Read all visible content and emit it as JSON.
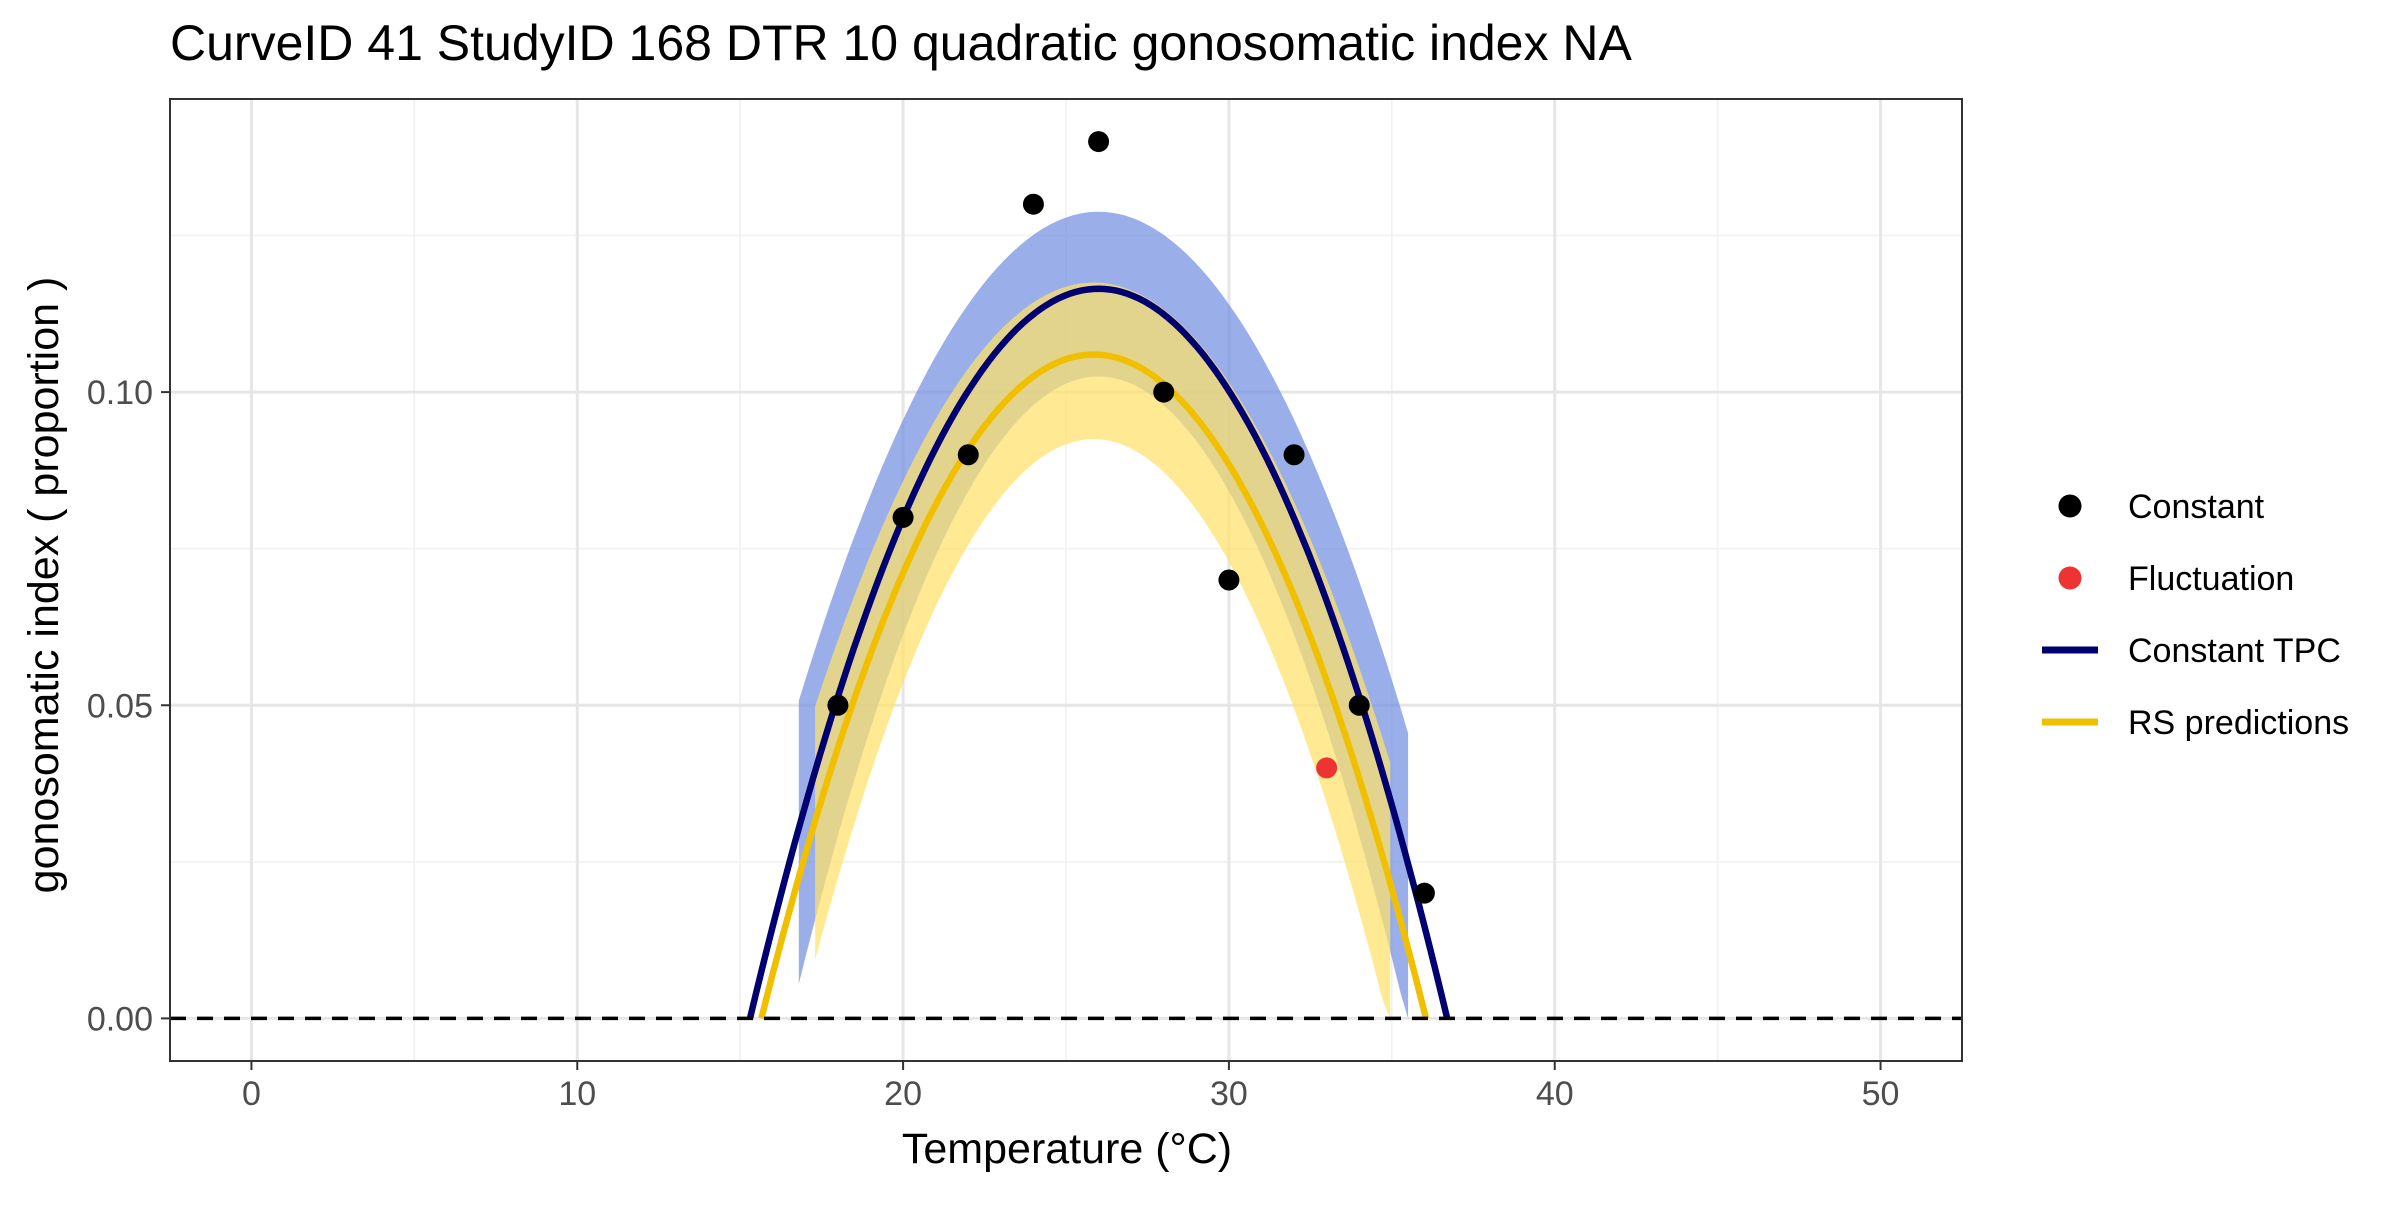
{
  "chart_data": {
    "type": "scatter",
    "title": "CurveID 41 StudyID 168 DTR 10 quadratic gonosomatic index NA",
    "xlabel": "Temperature (°C)",
    "ylabel": "gonosomatic index ( proportion )",
    "xlim": [
      -2.5,
      52.5
    ],
    "ylim": [
      -0.0068,
      0.1468
    ],
    "x_ticks": [
      0,
      10,
      20,
      30,
      40,
      50
    ],
    "x_tick_labels": [
      "0",
      "10",
      "20",
      "30",
      "40",
      "50"
    ],
    "y_ticks": [
      0.0,
      0.05,
      0.1
    ],
    "y_tick_labels": [
      "0.00",
      "0.05",
      "0.10"
    ],
    "grid": true,
    "legend_position": "right",
    "reference_line": {
      "y": 0,
      "style": "dashed",
      "color": "#000000"
    },
    "colors": {
      "constant_points": "#000000",
      "fluctuation_points": "#ee3333",
      "constant_tpc": "#000070",
      "constant_tpc_ci": "#6f8de0",
      "rs_predictions": "#f0c000",
      "rs_predictions_ci": "#ffe26a"
    },
    "legend": [
      {
        "label": "Constant",
        "kind": "point",
        "color": "#000000"
      },
      {
        "label": "Fluctuation",
        "kind": "point",
        "color": "#ee3333"
      },
      {
        "label": "Constant TPC",
        "kind": "line",
        "color": "#000070"
      },
      {
        "label": "RS predictions",
        "kind": "line",
        "color": "#f0c000"
      }
    ],
    "series": [
      {
        "name": "Constant",
        "kind": "points",
        "x": [
          18,
          20,
          22,
          24,
          26,
          28,
          30,
          32,
          34,
          36
        ],
        "y": [
          0.05,
          0.08,
          0.09,
          0.13,
          0.14,
          0.1,
          0.07,
          0.09,
          0.05,
          0.02
        ]
      },
      {
        "name": "Fluctuation",
        "kind": "points",
        "x": [
          33
        ],
        "y": [
          0.04
        ]
      },
      {
        "name": "Constant TPC",
        "kind": "quadratic_curve",
        "peak_x": 26.0,
        "peak_y": 0.1165,
        "half_width": 10.7,
        "x_range": [
          15.3,
          36.7
        ],
        "ci_band": {
          "x_range": [
            16.8,
            35.5
          ],
          "upper_peak": 0.1288,
          "lower_peak": 0.1025
        }
      },
      {
        "name": "RS predictions",
        "kind": "quadratic_curve",
        "peak_x": 25.85,
        "peak_y": 0.106,
        "half_width": 10.2,
        "x_range": [
          15.65,
          36.05
        ],
        "ci_band": {
          "x_range": [
            17.3,
            34.95
          ],
          "upper_peak": 0.1175,
          "lower_peak": 0.0925
        }
      }
    ]
  }
}
